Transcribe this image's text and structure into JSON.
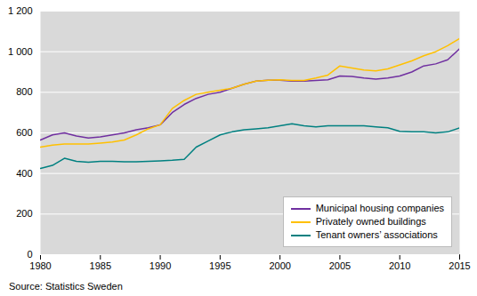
{
  "chart_data": {
    "type": "line",
    "annotations": [
      "Source: Statistics Sweden"
    ],
    "x": [
      1980,
      1981,
      1982,
      1983,
      1984,
      1985,
      1986,
      1987,
      1988,
      1989,
      1990,
      1991,
      1992,
      1993,
      1994,
      1995,
      1996,
      1997,
      1998,
      1999,
      2000,
      2001,
      2002,
      2003,
      2004,
      2005,
      2006,
      2007,
      2008,
      2009,
      2010,
      2011,
      2012,
      2013,
      2014,
      2015
    ],
    "series": [
      {
        "name": "Municipal housing companies",
        "color": "#7030a0",
        "values": [
          565,
          590,
          600,
          585,
          575,
          580,
          590,
          600,
          615,
          625,
          640,
          700,
          740,
          770,
          790,
          800,
          820,
          840,
          855,
          860,
          860,
          855,
          855,
          858,
          862,
          880,
          878,
          870,
          865,
          870,
          880,
          900,
          930,
          940,
          960,
          1015
        ]
      },
      {
        "name": "Privately owned buildings",
        "color": "#ffc000",
        "values": [
          530,
          540,
          545,
          545,
          545,
          550,
          555,
          565,
          590,
          620,
          640,
          720,
          760,
          790,
          800,
          810,
          820,
          840,
          855,
          860,
          862,
          858,
          858,
          870,
          885,
          930,
          920,
          910,
          905,
          915,
          935,
          955,
          980,
          1000,
          1030,
          1065
        ]
      },
      {
        "name": "Tenant owners’ associations",
        "color": "#008080",
        "values": [
          425,
          440,
          475,
          460,
          455,
          460,
          460,
          458,
          458,
          460,
          462,
          465,
          470,
          530,
          560,
          590,
          605,
          615,
          620,
          625,
          635,
          645,
          635,
          630,
          635,
          635,
          635,
          635,
          630,
          625,
          608,
          605,
          605,
          600,
          605,
          625
        ]
      }
    ],
    "xlim": [
      1980,
      2015
    ],
    "xticks": [
      1980,
      1985,
      1990,
      1995,
      2000,
      2005,
      2010,
      2015
    ],
    "ylim": [
      0,
      1200
    ],
    "yticks": [
      0,
      200,
      400,
      600,
      800,
      {
        "value": 1000,
        "label": "1 000"
      },
      {
        "value": 1200,
        "label": "1 200"
      }
    ],
    "grid": true,
    "legend": "lower right"
  }
}
